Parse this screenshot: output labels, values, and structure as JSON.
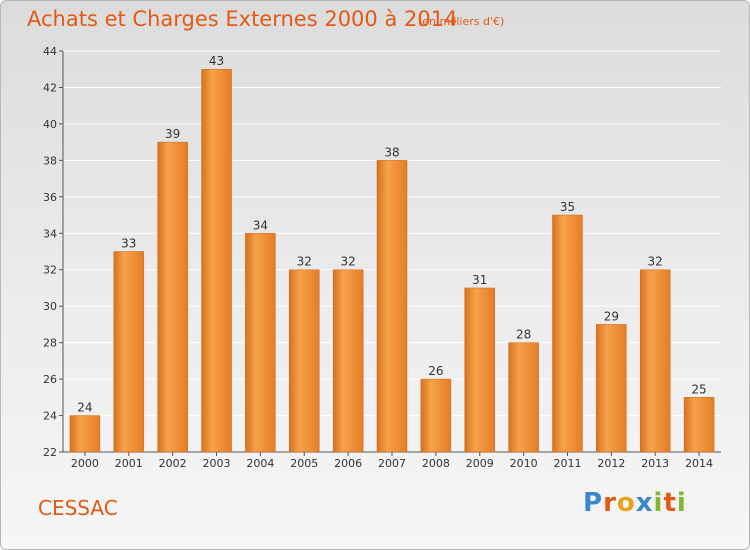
{
  "title": "Achats et Charges Externes 2000 à 2014",
  "unit_note": "(en milliers d'€)",
  "city": "CESSAC",
  "logo": [
    "P",
    "r",
    "o",
    "x",
    "i",
    "t",
    "i"
  ],
  "colors": {
    "accent": "#e35a14",
    "bar_light": "#f6a24a",
    "bar_dark": "#d4701c",
    "grid": "#ffffff"
  },
  "chart_data": {
    "type": "bar",
    "title": "Achats et Charges Externes 2000 à 2014",
    "subtitle": "(en milliers d'€)",
    "xlabel": "",
    "ylabel": "",
    "categories": [
      "2000",
      "2001",
      "2002",
      "2003",
      "2004",
      "2005",
      "2006",
      "2007",
      "2008",
      "2009",
      "2010",
      "2011",
      "2012",
      "2013",
      "2014"
    ],
    "values": [
      24,
      33,
      39,
      43,
      34,
      32,
      32,
      38,
      26,
      31,
      28,
      35,
      29,
      32,
      25
    ],
    "ylim": [
      22,
      44
    ],
    "yticks": [
      22,
      24,
      26,
      28,
      30,
      32,
      34,
      36,
      38,
      40,
      42,
      44
    ],
    "grid": true,
    "data_labels": true
  }
}
